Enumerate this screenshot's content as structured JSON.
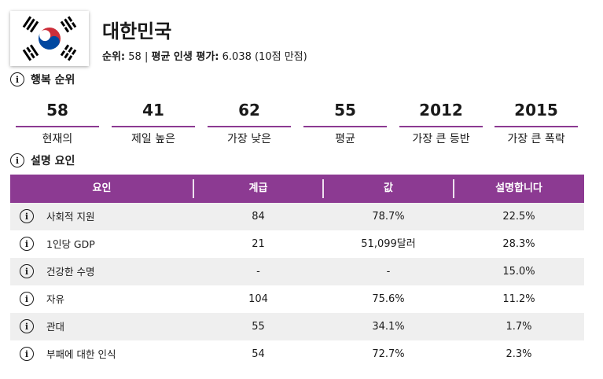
{
  "header": {
    "country": "대한민국",
    "rank_label": "순위:",
    "rank_value": "58",
    "separator": "|",
    "avg_label": "평균 인생 평가:",
    "avg_value": "6.038 (10점 만점)",
    "flag": {
      "name": "south-korea-flag",
      "colors": {
        "red": "#cd2e3a",
        "blue": "#0047a0",
        "black": "#000000"
      }
    }
  },
  "ranking_section": {
    "title": "행복 순위",
    "stats": [
      {
        "value": "58",
        "label": "현재의"
      },
      {
        "value": "41",
        "label": "제일 높은"
      },
      {
        "value": "62",
        "label": "가장 낮은"
      },
      {
        "value": "55",
        "label": "평균"
      },
      {
        "value": "2012",
        "label": "가장 큰 등반"
      },
      {
        "value": "2015",
        "label": "가장 큰 폭락"
      }
    ]
  },
  "factors_section": {
    "title": "설명 요인",
    "columns": [
      "요인",
      "계급",
      "값",
      "설명합니다"
    ],
    "rows": [
      {
        "factor": "사회적 지원",
        "rank": "84",
        "value": "78.7%",
        "explains": "22.5%"
      },
      {
        "factor": "1인당 GDP",
        "rank": "21",
        "value": "51,099달러",
        "explains": "28.3%"
      },
      {
        "factor": "건강한 수명",
        "rank": "-",
        "value": "-",
        "explains": "15.0%"
      },
      {
        "factor": "자유",
        "rank": "104",
        "value": "75.6%",
        "explains": "11.2%"
      },
      {
        "factor": "관대",
        "rank": "55",
        "value": "34.1%",
        "explains": "1.7%"
      },
      {
        "factor": "부패에 대한 인식",
        "rank": "54",
        "value": "72.7%",
        "explains": "2.3%"
      }
    ]
  },
  "theme": {
    "accent": "#8c3a92",
    "row_alt": "#efefef"
  },
  "icons": {
    "info": "info-icon",
    "info_glyph": "i"
  }
}
